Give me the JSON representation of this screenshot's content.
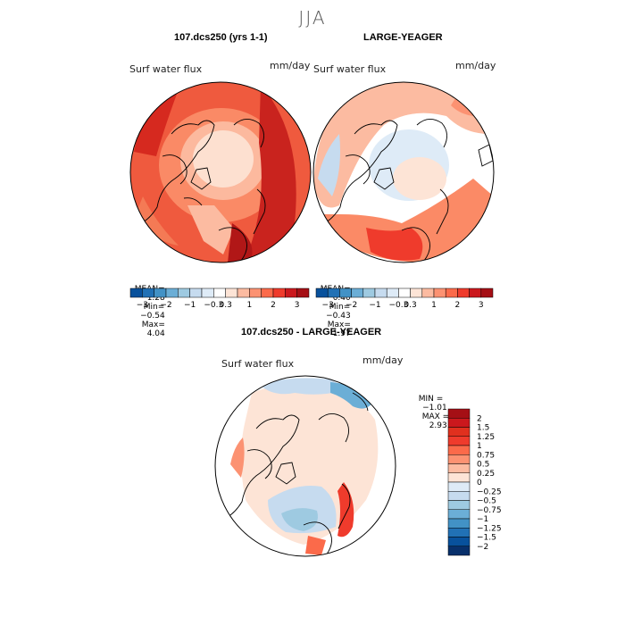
{
  "season_title": "JJA",
  "colors": {
    "reds": [
      "#fde4d6",
      "#fcbba1",
      "#fc9272",
      "#fb6a4a",
      "#ef3b2c",
      "#cb181d",
      "#a50f15"
    ],
    "blues": [
      "#deebf7",
      "#c6dbef",
      "#9ecae1",
      "#6baed6",
      "#4292c6",
      "#2171b5",
      "#08519c"
    ],
    "land_outline": "#000000"
  },
  "panels": [
    {
      "title": "107.dcs250 (yrs 1-1)",
      "variable": "Surf water flux",
      "units": "mm/day",
      "stats": {
        "mean_label": "MEAN=",
        "mean": "1.28",
        "min_label": "Min=",
        "min": "−0.54",
        "max_label": "Max=",
        "max": "4.04"
      },
      "colorbar_ticks": [
        "−3",
        "−2",
        "−1",
        "−0.3",
        "0.3",
        "1",
        "2",
        "3"
      ]
    },
    {
      "title": "LARGE-YEAGER",
      "variable": "Surf water flux",
      "units": "mm/day",
      "stats": {
        "mean_label": "MEAN=",
        "mean": "0.40",
        "min_label": "Min=",
        "min": "−0.43",
        "max_label": "Max=",
        "max": "1.97"
      },
      "colorbar_ticks": [
        "−3",
        "−2",
        "−1",
        "−0.3",
        "0.3",
        "1",
        "2",
        "3"
      ]
    },
    {
      "title": "107.dcs250 - LARGE-YEAGER",
      "variable": "Surf water flux",
      "units": "mm/day",
      "stats": {
        "min_label": "MIN =",
        "min": "−1.01",
        "max_label": "MAX =",
        "max": "2.93"
      },
      "colorbar_ticks": [
        "2",
        "1.5",
        "1.25",
        "1",
        "0.75",
        "0.5",
        "0.25",
        "0",
        "−0.25",
        "−0.5",
        "−0.75",
        "−1",
        "−1.25",
        "−1.5",
        "−2"
      ]
    }
  ]
}
